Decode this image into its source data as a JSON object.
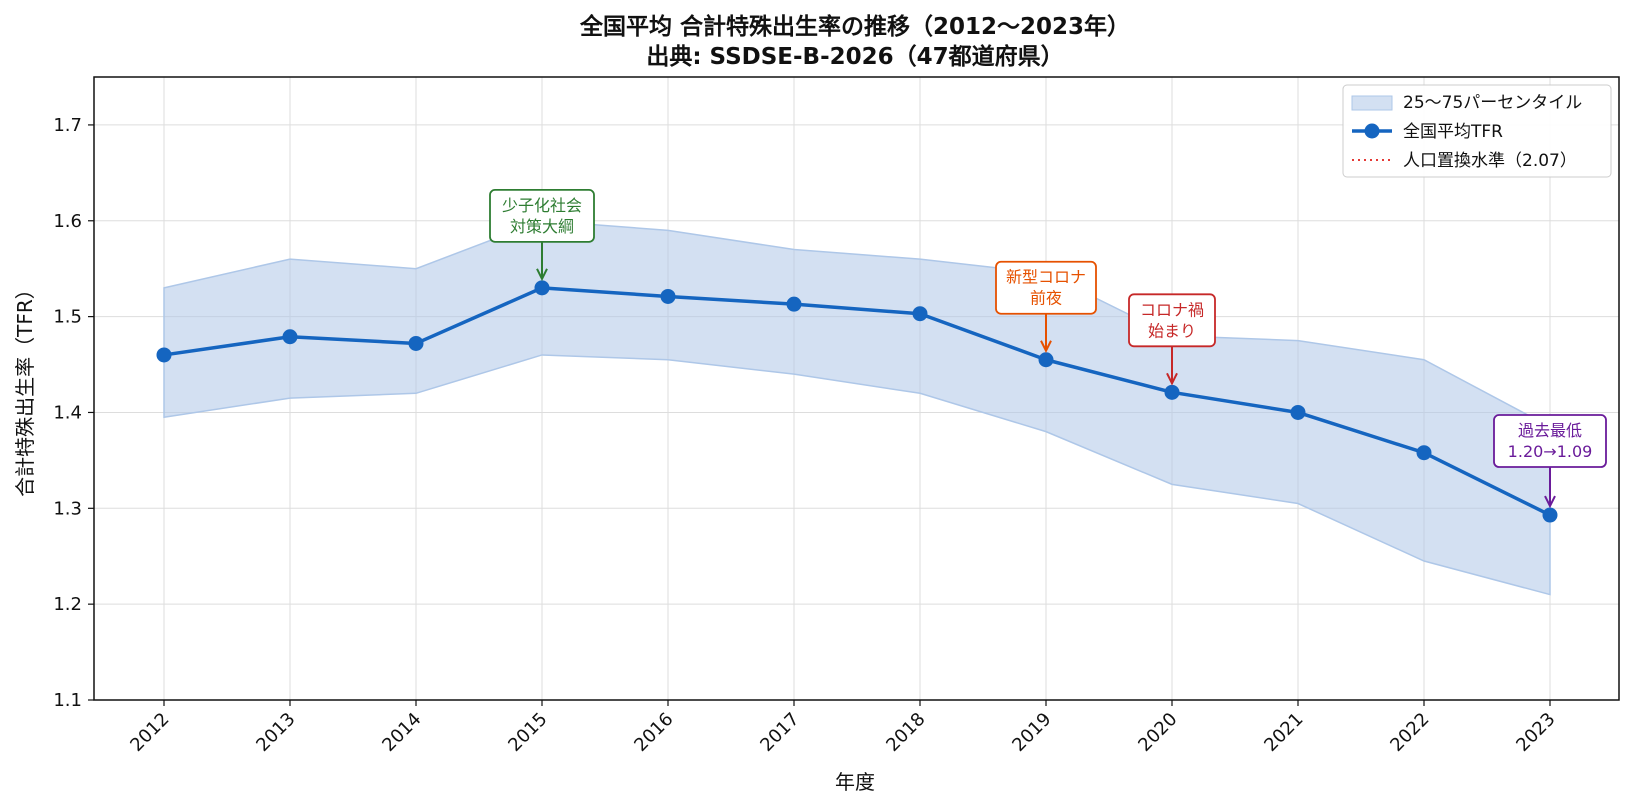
{
  "chart_data": {
    "type": "line",
    "title_line1": "全国平均 合計特殊出生率の推移（2012〜2023年）",
    "title_line2": "出典: SSDSE-B-2026（47都道府県）",
    "xlabel": "年度",
    "ylabel": "合計特殊出生率（TFR）",
    "x": [
      "2012",
      "2013",
      "2014",
      "2015",
      "2016",
      "2017",
      "2018",
      "2019",
      "2020",
      "2021",
      "2022",
      "2023"
    ],
    "ylim": [
      1.1,
      1.75
    ],
    "yticks": [
      "1.1",
      "1.2",
      "1.3",
      "1.4",
      "1.5",
      "1.6",
      "1.7"
    ],
    "grid": true,
    "legend_position": "top-right",
    "series": [
      {
        "name": "全国平均TFR",
        "type": "line",
        "color": "#1565c0",
        "values": [
          1.46,
          1.479,
          1.472,
          1.53,
          1.521,
          1.513,
          1.503,
          1.455,
          1.421,
          1.4,
          1.358,
          1.293
        ]
      },
      {
        "name": "25〜75パーセンタイル",
        "type": "band",
        "color": "#aec7e8",
        "lower": [
          1.395,
          1.415,
          1.42,
          1.46,
          1.455,
          1.44,
          1.42,
          1.38,
          1.325,
          1.305,
          1.245,
          1.21
        ],
        "upper": [
          1.53,
          1.56,
          1.55,
          1.6,
          1.59,
          1.57,
          1.56,
          1.545,
          1.48,
          1.475,
          1.455,
          1.385
        ]
      },
      {
        "name": "人口置換水準（2.07）",
        "type": "hline",
        "color": "#e53935",
        "value": 2.07
      }
    ],
    "annotations": [
      {
        "x": "2015",
        "lines": [
          "少子化社会",
          "対策大綱"
        ],
        "color": "#2e7d32"
      },
      {
        "x": "2019",
        "lines": [
          "新型コロナ",
          "前夜"
        ],
        "color": "#e65100"
      },
      {
        "x": "2020",
        "lines": [
          "コロナ禍",
          "始まり"
        ],
        "color": "#c62828"
      },
      {
        "x": "2023",
        "lines": [
          "過去最低",
          "1.20→1.09"
        ],
        "color": "#6a1b9a"
      }
    ]
  }
}
